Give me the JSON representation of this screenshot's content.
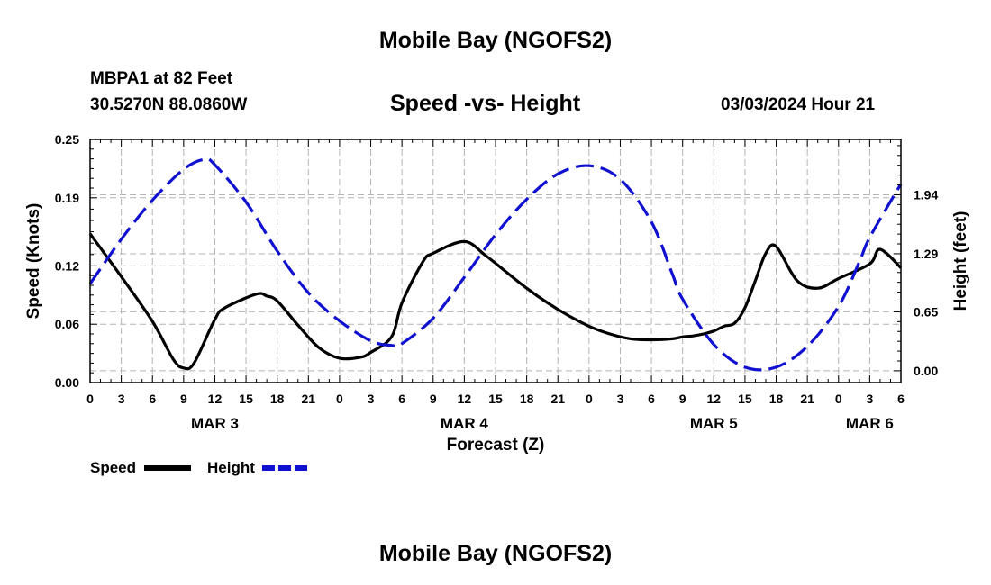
{
  "header": {
    "title": "Mobile Bay (NGOFS2)",
    "station": "MBPA1 at 82 Feet",
    "coords": "30.5270N  88.0860W",
    "chart_title": "Speed -vs- Height",
    "datetime": "03/03/2024 Hour 21"
  },
  "footer": {
    "title": "Mobile Bay (NGOFS2)"
  },
  "chart_data": {
    "type": "line",
    "title": "Speed -vs- Height",
    "xlabel": "Forecast (Z)",
    "ylabel": "Speed (Knots)",
    "y2label": "Height (feet)",
    "x_tick_labels": [
      "0",
      "3",
      "6",
      "9",
      "12",
      "15",
      "18",
      "21",
      "0",
      "3",
      "6",
      "9",
      "12",
      "15",
      "18",
      "21",
      "0",
      "3",
      "6",
      "9",
      "12",
      "15",
      "18",
      "21",
      "0",
      "3",
      "6"
    ],
    "date_labels": [
      {
        "label": "MAR 3",
        "hour": 12
      },
      {
        "label": "MAR 4",
        "hour": 36
      },
      {
        "label": "MAR 5",
        "hour": 60
      },
      {
        "label": "MAR 6",
        "hour": 75
      }
    ],
    "xlim": [
      0,
      78
    ],
    "ylim": [
      0,
      0.25
    ],
    "y_ticks": [
      "0.00",
      "0.06",
      "0.12",
      "0.19",
      "0.25"
    ],
    "y2_ticks": [
      "0.00",
      "0.65",
      "1.29",
      "1.94"
    ],
    "y2lim": [
      -0.13,
      2.55
    ],
    "grid": true,
    "legend_position": "bottom-left",
    "series": [
      {
        "name": "Speed",
        "axis": "left",
        "color": "#000000",
        "style": "solid",
        "x": [
          0,
          3,
          6,
          8,
          9,
          10,
          12,
          13,
          16,
          17,
          18,
          20,
          22,
          24,
          26,
          27,
          29,
          30,
          32,
          33,
          36,
          38,
          40,
          42,
          44,
          46,
          48,
          50,
          52,
          54,
          56,
          57,
          58,
          59,
          60,
          61,
          62,
          63,
          64,
          65,
          66,
          68,
          70,
          72,
          75,
          76,
          78
        ],
        "y": [
          0.153,
          0.109,
          0.063,
          0.024,
          0.015,
          0.02,
          0.065,
          0.077,
          0.091,
          0.089,
          0.084,
          0.059,
          0.036,
          0.025,
          0.026,
          0.031,
          0.047,
          0.082,
          0.124,
          0.133,
          0.145,
          0.131,
          0.114,
          0.097,
          0.082,
          0.069,
          0.058,
          0.05,
          0.045,
          0.044,
          0.045,
          0.047,
          0.048,
          0.05,
          0.053,
          0.058,
          0.061,
          0.077,
          0.105,
          0.133,
          0.14,
          0.105,
          0.097,
          0.107,
          0.122,
          0.137,
          0.118
        ]
      },
      {
        "name": "Height",
        "axis": "right",
        "color": "#1010d0",
        "style": "dashed",
        "x": [
          0,
          3,
          6,
          9,
          11,
          12,
          15,
          18,
          21,
          24,
          27,
          29,
          30,
          33,
          36,
          39,
          42,
          45,
          48,
          51,
          54,
          56,
          57,
          60,
          63,
          66,
          69,
          72,
          74,
          75,
          78
        ],
        "y": [
          0.96,
          1.45,
          1.88,
          2.22,
          2.33,
          2.27,
          1.86,
          1.32,
          0.86,
          0.55,
          0.33,
          0.28,
          0.3,
          0.58,
          1.03,
          1.5,
          1.89,
          2.17,
          2.26,
          2.11,
          1.64,
          1.07,
          0.79,
          0.29,
          0.04,
          0.04,
          0.27,
          0.71,
          1.2,
          1.47,
          2.06
        ]
      }
    ]
  },
  "legend": {
    "speed_label": "Speed",
    "height_label": "Height"
  },
  "colors": {
    "speed": "#000000",
    "height": "#1010d0",
    "grid": "#b4b4b4"
  }
}
